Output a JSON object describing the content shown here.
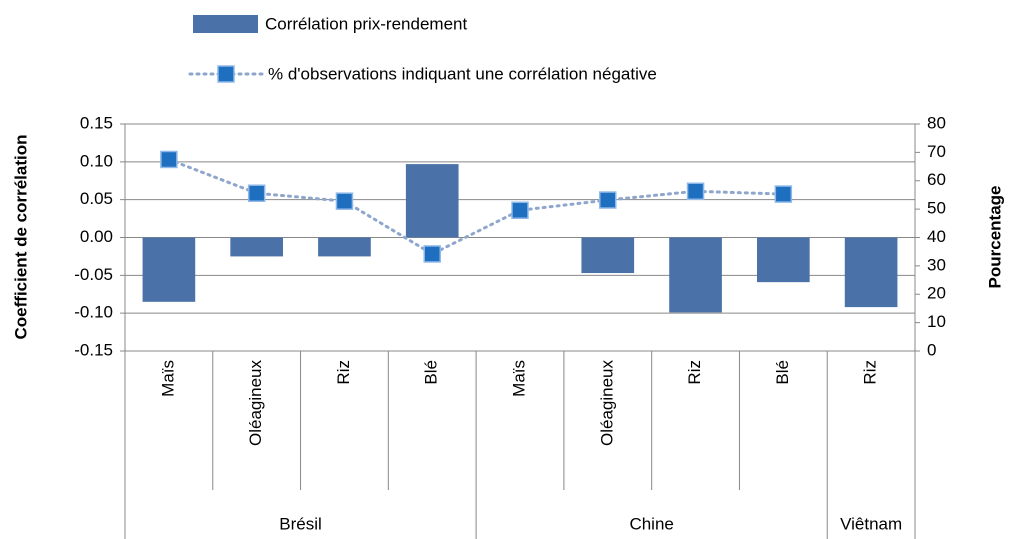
{
  "chart_data": {
    "type": "bar_line",
    "groups": [
      {
        "name": "Brésil",
        "categories": [
          "Maïs",
          "Oléagineux",
          "Riz",
          "Blé"
        ]
      },
      {
        "name": "Chine",
        "categories": [
          "Maïs",
          "Oléagineux",
          "Riz",
          "Blé"
        ]
      },
      {
        "name": "Viêtnam",
        "categories": [
          "Riz"
        ]
      }
    ],
    "series": [
      {
        "name": "Corrélation prix-rendement",
        "type": "bar",
        "color": "#4a72a8",
        "values": [
          -0.085,
          -0.025,
          -0.025,
          0.097,
          0,
          -0.047,
          -0.099,
          -0.059,
          -0.092
        ]
      },
      {
        "name": "% d'observations indiquant une corrélation négative",
        "type": "line",
        "axis": "y2",
        "color": "#8fa6cc",
        "marker_color": "#1f6fc0",
        "values": [
          67.5,
          55.6,
          52.8,
          34.2,
          49.6,
          53.2,
          56.3,
          55.3,
          null
        ]
      }
    ],
    "ylabel": "Coefficient de corrélation",
    "y2label": "Pourcentage",
    "ylim": [
      -0.15,
      0.15
    ],
    "yticks": [
      {
        "value": -0.15,
        "label": "-0.15"
      },
      {
        "value": -0.1,
        "label": "-0.10"
      },
      {
        "value": -0.05,
        "label": "-0.05"
      },
      {
        "value": 0,
        "label": "0.00"
      },
      {
        "value": 0.05,
        "label": "0.05"
      },
      {
        "value": 0.1,
        "label": "0.10"
      },
      {
        "value": 0.15,
        "label": "0.15"
      }
    ],
    "y2lim": [
      0,
      80
    ],
    "y2ticks": [
      0,
      10,
      20,
      30,
      40,
      50,
      60,
      70,
      80
    ],
    "grid": true
  }
}
